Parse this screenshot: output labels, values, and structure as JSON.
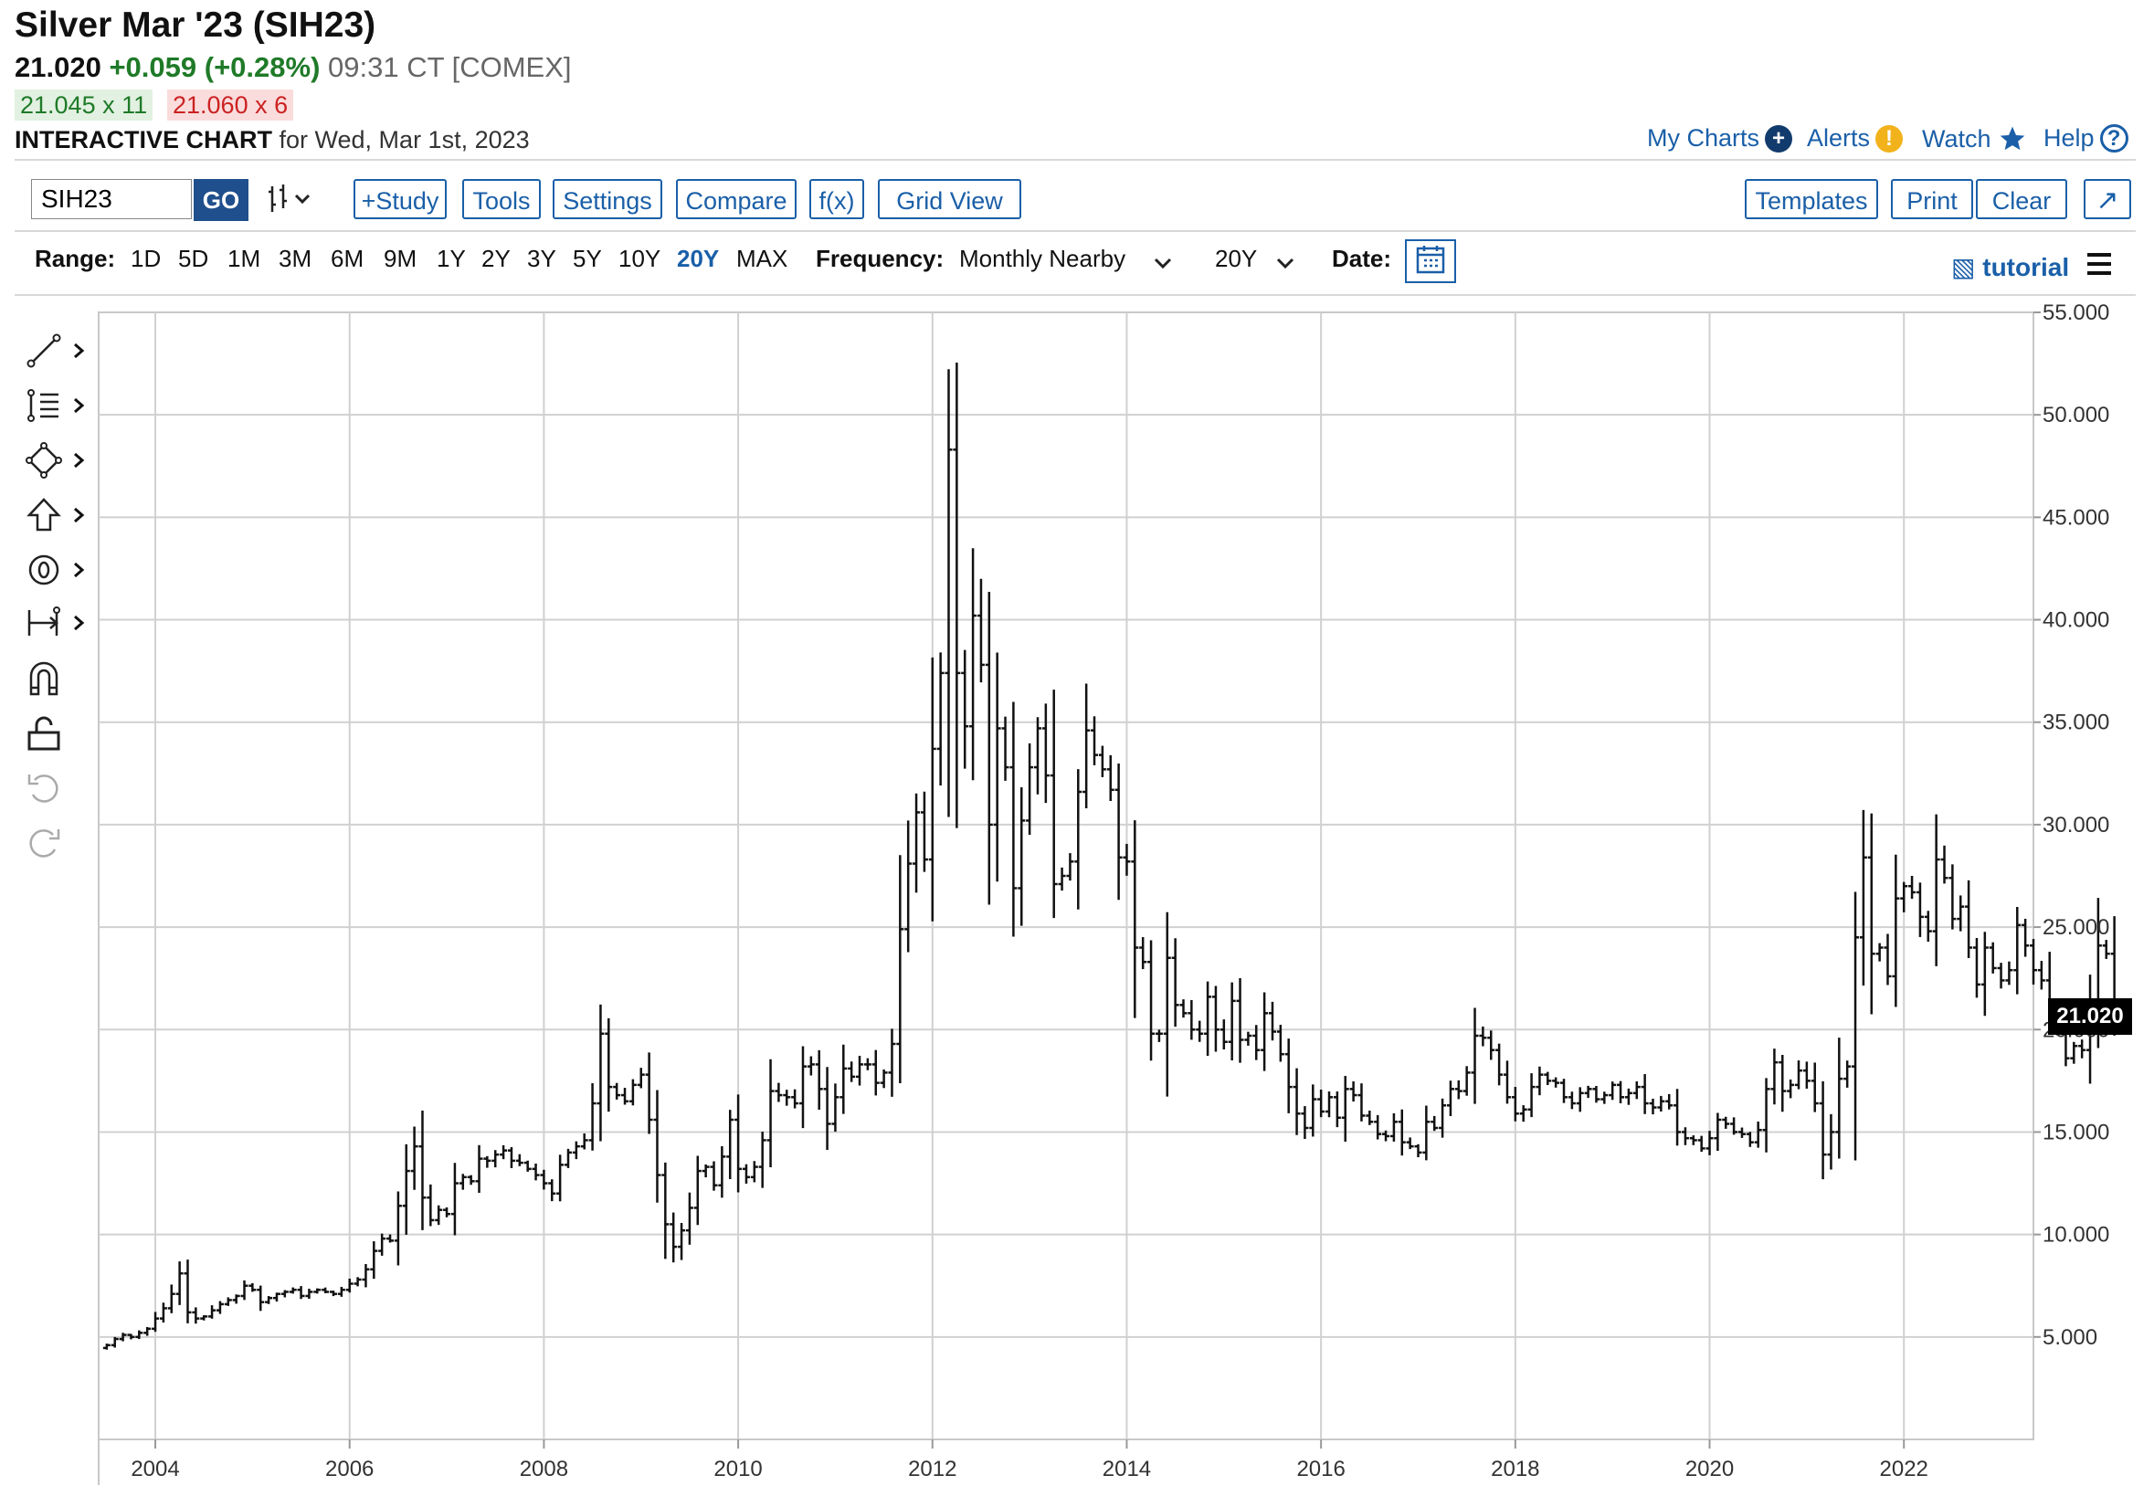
{
  "header": {
    "title": "Silver Mar '23 (SIH23)",
    "last_price": "21.020",
    "change": "+0.059 (+0.28%)",
    "time": "09:31 CT [COMEX]",
    "bid": "21.045 x 11",
    "ask": "21.060 x 6",
    "chart_label": "INTERACTIVE CHART",
    "chart_date": "for Wed, Mar 1st, 2023"
  },
  "top_links": {
    "my_charts": "My Charts",
    "alerts": "Alerts",
    "watch": "Watch",
    "help": "Help"
  },
  "toolbar": {
    "symbol_value": "SIH23",
    "go": "GO",
    "study": "+Study",
    "tools": "Tools",
    "settings": "Settings",
    "compare": "Compare",
    "fx": "f(x)",
    "grid_view": "Grid View",
    "templates": "Templates",
    "print": "Print",
    "clear": "Clear"
  },
  "range_bar": {
    "range_label": "Range:",
    "ranges": [
      "1D",
      "5D",
      "1M",
      "3M",
      "6M",
      "9M",
      "1Y",
      "2Y",
      "3Y",
      "5Y",
      "10Y",
      "20Y",
      "MAX"
    ],
    "active_range": "20Y",
    "frequency_label": "Frequency:",
    "frequency_value": "Monthly Nearby",
    "period_value": "20Y",
    "date_label": "Date:",
    "tutorial": "tutorial"
  },
  "icons": {
    "side_tools": [
      "line-tool-icon",
      "fib-tool-icon",
      "shape-tool-icon",
      "arrow-tool-icon",
      "text-tool-icon",
      "measure-tool-icon",
      "magnet-icon",
      "unlock-icon",
      "undo-icon",
      "redo-icon"
    ]
  },
  "colors": {
    "accent": "#1a5fa8",
    "positive": "#1f7a28",
    "negative": "#cc2222",
    "bars": "#111111",
    "grid": "#d0d0d0"
  },
  "chart_data": {
    "type": "ohlc",
    "title": "",
    "xlabel": "",
    "ylabel": "",
    "x_tick_labels": [
      "2004",
      "2006",
      "2008",
      "2010",
      "2012",
      "2014",
      "2016",
      "2018",
      "2020",
      "2022"
    ],
    "y_tick_labels": [
      "5.000",
      "10.000",
      "15.000",
      "20.000",
      "25.000",
      "30.000",
      "35.000",
      "40.000",
      "45.000",
      "50.000",
      "55.000"
    ],
    "ylim": [
      0,
      55
    ],
    "x_range": [
      "2003-06",
      "2023-05"
    ],
    "y_axis_side": "right",
    "grid": true,
    "last_value": "21.020",
    "series": [
      {
        "frequency": "monthly",
        "start": "2003-07",
        "close": [
          4.6,
          4.9,
          5.1,
          5.0,
          5.2,
          5.4,
          5.9,
          6.4,
          7.1,
          8.1,
          6.2,
          5.9,
          6.0,
          6.3,
          6.6,
          6.8,
          7.0,
          7.5,
          7.3,
          6.7,
          6.9,
          7.1,
          7.2,
          7.3,
          7.0,
          7.2,
          7.3,
          7.2,
          7.1,
          7.3,
          7.6,
          7.8,
          8.3,
          9.2,
          9.8,
          9.7,
          11.4,
          13.1,
          14.3,
          11.8,
          10.7,
          11.2,
          11.0,
          12.5,
          12.8,
          12.6,
          13.7,
          13.6,
          13.9,
          14.1,
          13.6,
          13.5,
          13.2,
          12.9,
          12.5,
          12.0,
          13.4,
          14.0,
          14.3,
          14.6,
          16.4,
          19.8,
          17.2,
          16.8,
          16.5,
          17.3,
          17.8,
          15.6,
          12.9,
          10.5,
          9.4,
          10.2,
          11.3,
          13.1,
          13.3,
          12.4,
          13.8,
          15.6,
          13.2,
          12.8,
          13.3,
          14.6,
          17.0,
          16.8,
          16.7,
          16.4,
          18.2,
          18.3,
          17.1,
          15.4,
          16.7,
          18.1,
          17.7,
          18.3,
          18.3,
          17.4,
          17.9,
          19.3,
          24.9,
          28.1,
          30.6,
          28.3,
          33.7,
          37.4,
          48.3,
          37.4,
          34.8,
          40.2,
          37.8,
          30.0,
          34.7,
          32.8,
          26.9,
          30.2,
          32.8,
          34.7,
          32.4,
          27.1,
          27.5,
          28.2,
          31.6,
          34.6,
          33.4,
          32.7,
          31.7,
          28.4,
          28.2,
          24.0,
          23.3,
          19.8,
          19.8,
          23.5,
          21.2,
          20.8,
          20.0,
          19.8,
          21.6,
          20.0,
          19.4,
          21.4,
          19.5,
          19.7,
          19.0,
          20.8,
          19.9,
          18.8,
          17.2,
          15.9,
          15.2,
          16.6,
          16.0,
          16.7,
          15.7,
          17.1,
          16.8,
          15.8,
          15.5,
          14.9,
          14.8,
          15.5,
          14.5,
          14.3,
          14.0,
          15.5,
          15.2,
          16.3,
          17.1,
          17.0,
          17.9,
          19.7,
          19.6,
          19.0,
          17.8,
          16.7,
          15.9,
          16.1,
          17.2,
          17.8,
          17.5,
          17.4,
          16.7,
          16.4,
          16.9,
          17.1,
          16.6,
          16.8,
          17.3,
          16.7,
          16.9,
          17.2,
          16.4,
          16.2,
          16.5,
          16.3,
          15.0,
          14.7,
          14.6,
          14.2,
          14.7,
          15.6,
          15.4,
          15.0,
          14.9,
          14.5,
          15.1,
          17.1,
          18.4,
          17.0,
          17.3,
          18.0,
          17.5,
          16.4,
          13.9,
          15.0,
          17.6,
          18.2,
          24.5,
          28.4,
          23.7,
          24.0,
          22.6,
          26.4,
          27.0,
          26.7,
          25.5,
          24.8,
          28.3,
          27.4,
          25.4,
          26.0,
          24.0,
          22.2,
          24.0,
          23.0,
          22.4,
          22.9,
          25.1,
          24.1,
          22.9,
          22.4,
          20.7,
          20.1,
          18.6,
          19.2,
          19.0,
          21.3,
          24.1,
          23.7,
          20.9,
          21.02
        ]
      }
    ]
  }
}
